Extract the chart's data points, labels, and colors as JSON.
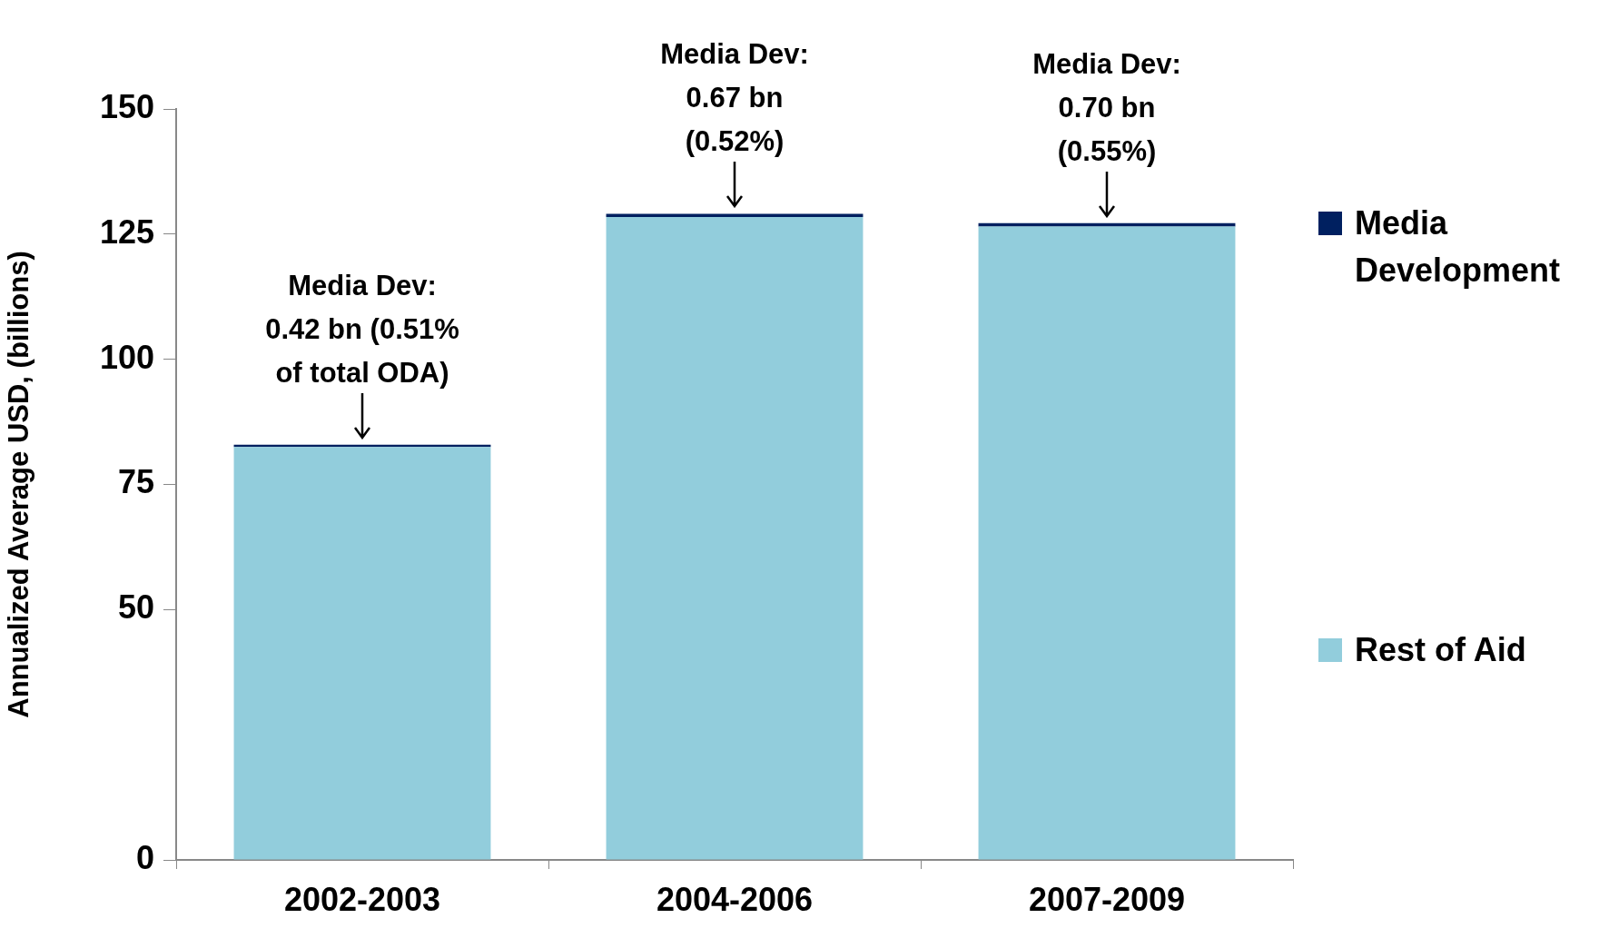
{
  "chart_data": {
    "type": "bar",
    "stacked": true,
    "categories": [
      "2002-2003",
      "2004-2006",
      "2007-2009"
    ],
    "ylabel": "Annualized Average USD, (billions)",
    "series": [
      {
        "name": "Rest of Aid",
        "color": "#92cddc",
        "values": [
          82.5,
          128.4,
          126.5
        ]
      },
      {
        "name": "Media Development",
        "color": "#002060",
        "values": [
          0.42,
          0.67,
          0.7
        ]
      }
    ],
    "ylim": [
      0,
      150
    ],
    "yticks": [
      0,
      50,
      75,
      100,
      125,
      150
    ],
    "grid": false,
    "legend": "right",
    "annotations": [
      {
        "text": "Media Dev:\n0.42 bn (0.51%\nof total ODA)",
        "x": "2002-2003",
        "y": 82.92
      },
      {
        "text": "Media Dev:\n0.67 bn\n(0.52%)",
        "x": "2004-2006",
        "y": 129.07
      },
      {
        "text": "Media Dev:\n0.70 bn\n(0.55%)",
        "x": "2007-2009",
        "y": 127.2
      }
    ]
  }
}
